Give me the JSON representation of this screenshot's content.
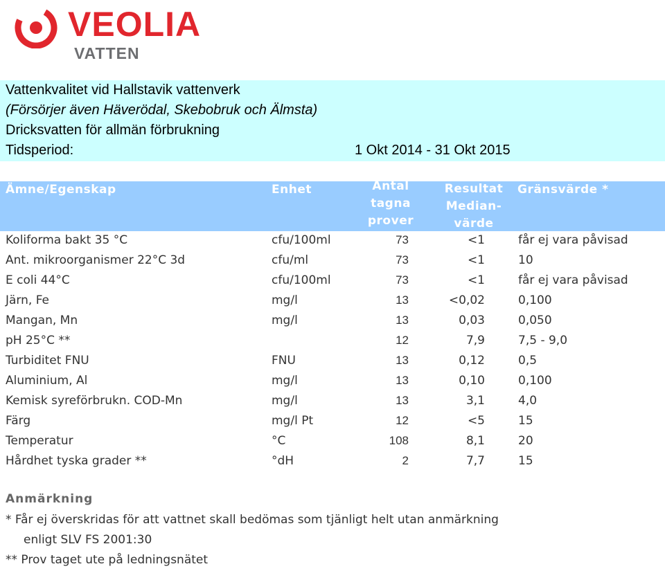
{
  "brand": {
    "name": "VEOLIA",
    "sub": "VATTEN",
    "color": "#e1262d"
  },
  "info": {
    "line1": "Vattenkvalitet vid Hallstavik vattenverk",
    "line2": "(Försörjer även Häverödal, Skebobruk och Älmsta)",
    "line3": "Dricksvatten för allmän förbrukning",
    "period_label": "Tidsperiod:",
    "period_value": "1 Okt 2014 - 31 Okt 2015"
  },
  "header": {
    "amne": "Ämne/Egenskap",
    "enhet": "Enhet",
    "antal": [
      "Antal",
      "tagna",
      "prover"
    ],
    "resultat": [
      "Resultat",
      "Median-",
      "värde"
    ],
    "grans": "Gränsvärde *"
  },
  "rows": [
    {
      "name": "Koliforma bakt 35 °C",
      "unit": "cfu/100ml",
      "count": "73",
      "result": "<1",
      "limit": "får ej vara påvisad"
    },
    {
      "name": "Ant. mikroorganismer 22°C 3d",
      "unit": "cfu/ml",
      "count": "73",
      "result": "<1",
      "limit": "10"
    },
    {
      "name": "E coli 44°C",
      "unit": "cfu/100ml",
      "count": "73",
      "result": "<1",
      "limit": "får ej vara påvisad"
    },
    {
      "name": "Järn, Fe",
      "unit": "mg/l",
      "count": "13",
      "result": "<0,02",
      "limit": "0,100"
    },
    {
      "name": "Mangan, Mn",
      "unit": "mg/l",
      "count": "13",
      "result": "0,03",
      "limit": "0,050"
    },
    {
      "name": "pH 25°C **",
      "unit": "",
      "count": "12",
      "result": "7,9",
      "limit": "7,5 - 9,0"
    },
    {
      "name": "Turbiditet FNU",
      "unit": "FNU",
      "count": "13",
      "result": "0,12",
      "limit": "0,5"
    },
    {
      "name": "Aluminium, Al",
      "unit": "mg/l",
      "count": "13",
      "result": "0,10",
      "limit": "0,100"
    },
    {
      "name": "Kemisk syreförbrukn. COD-Mn",
      "unit": "mg/l",
      "count": "13",
      "result": "3,1",
      "limit": "4,0"
    },
    {
      "name": "Färg",
      "unit": "mg/l Pt",
      "count": "12",
      "result": "<5",
      "limit": "15"
    },
    {
      "name": "Temperatur",
      "unit": "°C",
      "count": "108",
      "result": "8,1",
      "limit": "20"
    },
    {
      "name": "Hårdhet tyska grader **",
      "unit": "°dH",
      "count": "2",
      "result": "7,7",
      "limit": "15"
    }
  ],
  "notes": {
    "title": "Anmärkning",
    "n1": "*  Får ej överskridas för att vattnet skall bedömas som tjänligt helt utan anmärkning",
    "n2": "enligt SLV FS 2001:30",
    "n3": "** Prov taget ute på ledningsnätet"
  }
}
